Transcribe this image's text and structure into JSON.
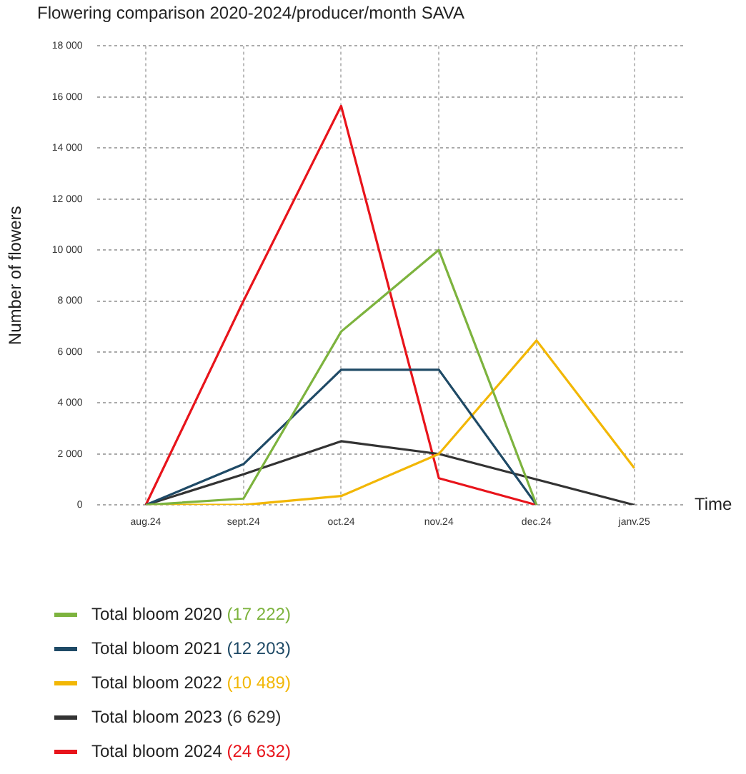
{
  "chart_data": {
    "type": "line",
    "title": "Flowering comparison 2020-2024/producer/month SAVA",
    "xlabel": "Time",
    "ylabel": "Number of flowers",
    "categories": [
      "aug.24",
      "sept.24",
      "oct.24",
      "nov.24",
      "dec.24",
      "janv.25"
    ],
    "series": [
      {
        "name": "Total bloom 2020 (17 222)",
        "color": "#7db33e",
        "values": [
          0,
          250,
          6800,
          10000,
          0,
          null
        ]
      },
      {
        "name": "Total bloom 2021 (12 203)",
        "color": "#1f4a66",
        "values": [
          0,
          1600,
          5300,
          5300,
          0,
          null
        ]
      },
      {
        "name": "Total bloom 2022 (10 489)",
        "color": "#f2b705",
        "values": [
          0,
          0,
          350,
          2000,
          6450,
          1450
        ]
      },
      {
        "name": "Total bloom 2023 (6 629)",
        "color": "#333333",
        "values": [
          0,
          1200,
          2500,
          2000,
          1000,
          0
        ]
      },
      {
        "name": "Total bloom 2024 (24 632)",
        "color": "#e8141b",
        "values": [
          0,
          8000,
          15650,
          1050,
          0,
          null
        ]
      }
    ],
    "ylim": [
      0,
      18000
    ],
    "yticks": [
      {
        "value": 0,
        "label": "0"
      },
      {
        "value": 2000,
        "label": "2 000"
      },
      {
        "value": 4000,
        "label": "4 000"
      },
      {
        "value": 6000,
        "label": "6 000"
      },
      {
        "value": 8000,
        "label": "8 000"
      },
      {
        "value": 10000,
        "label": "10 000"
      },
      {
        "value": 12000,
        "label": "12 000"
      },
      {
        "value": 14000,
        "label": "14 000"
      },
      {
        "value": 16000,
        "label": "16 000"
      },
      {
        "value": 18000,
        "label": "18 000"
      }
    ],
    "grid": true,
    "legend": "bottom",
    "marker": "none",
    "line_style": "solid"
  }
}
